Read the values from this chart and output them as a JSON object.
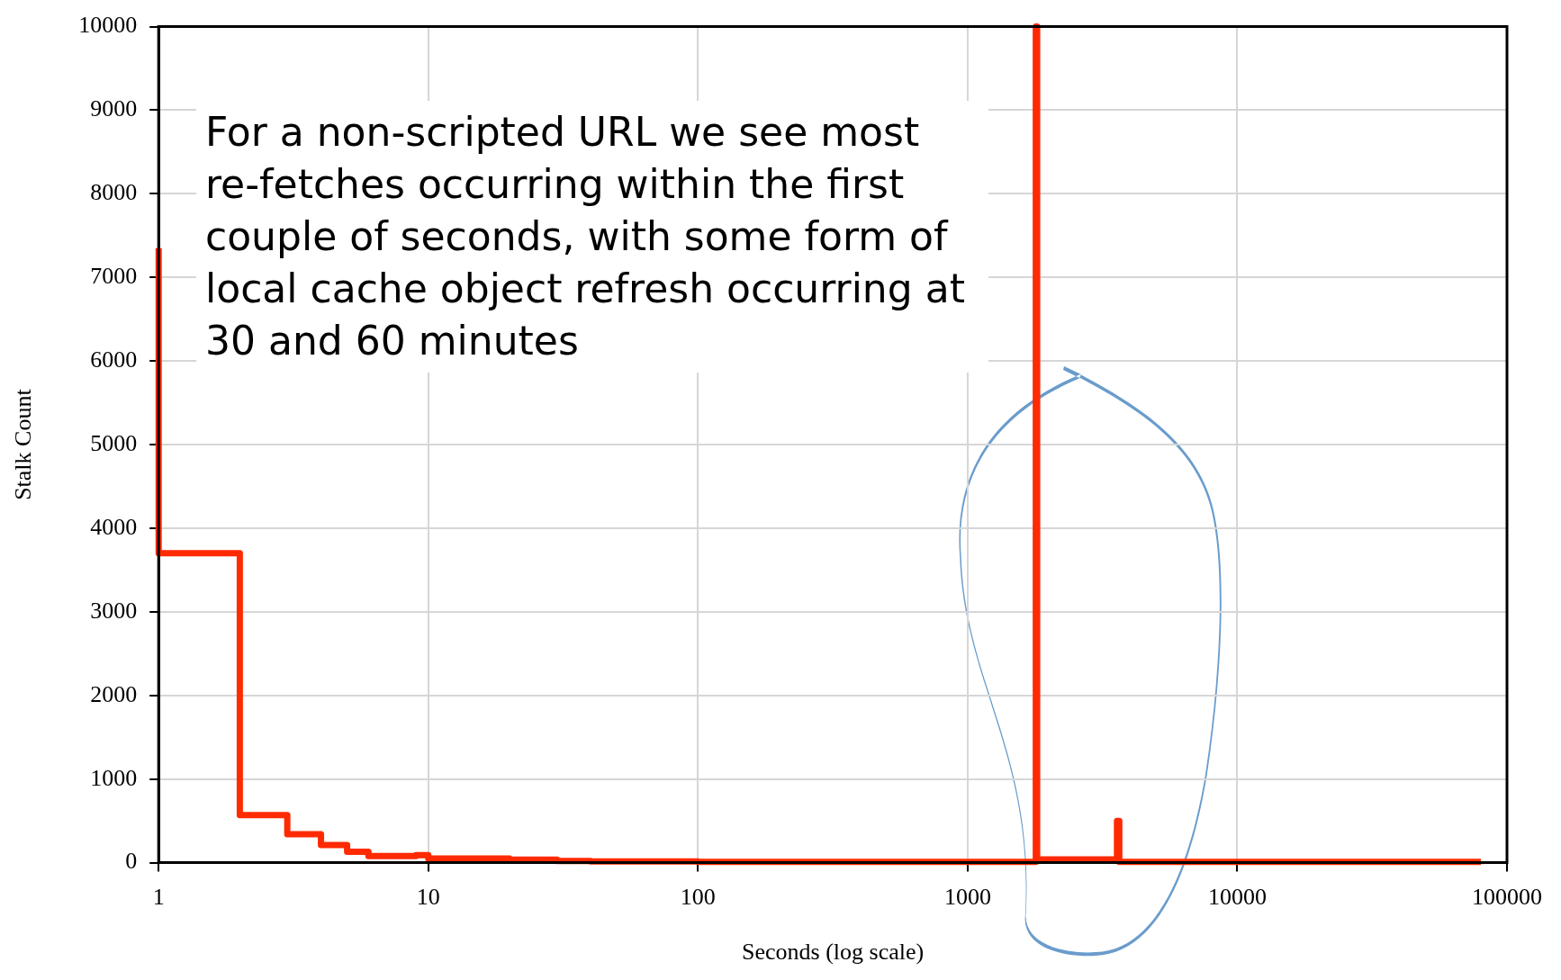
{
  "chart_data": {
    "type": "step",
    "xlabel": "Seconds (log scale)",
    "ylabel": "Stalk Count",
    "log": "x",
    "x": [
      1,
      1,
      2,
      3,
      4,
      5,
      6,
      9,
      10,
      20,
      30,
      40,
      100,
      1000,
      1790,
      1810,
      3580,
      3650,
      80000
    ],
    "values": [
      7350,
      3700,
      570,
      340,
      210,
      130,
      80,
      90,
      50,
      35,
      20,
      15,
      10,
      8,
      10000,
      40,
      500,
      10,
      10
    ],
    "color": "#ff2a00",
    "grid": true,
    "marker": "none",
    "line_style": "solid",
    "xlim": [
      1,
      100000
    ],
    "xticks": [
      1,
      10,
      100,
      1000,
      10000,
      100000
    ],
    "ylim": [
      0,
      10000
    ],
    "yticks": [
      0,
      1000,
      2000,
      3000,
      4000,
      5000,
      6000,
      7000,
      8000,
      9000,
      10000
    ],
    "annotations": [
      "For a non-scripted URL we see most re-fetches occurring within the first couple of seconds, with some form of local cache object refresh occurring at 30 and 60 minutes"
    ]
  }
}
